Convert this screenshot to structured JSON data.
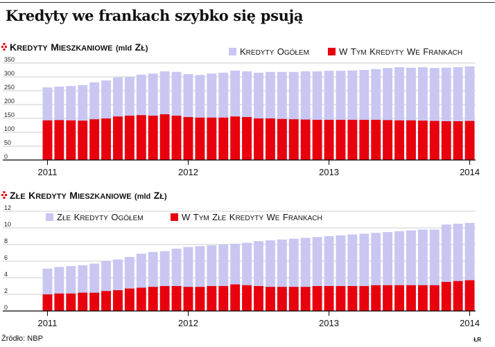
{
  "title": "Kredyty we frankach szybko się psują",
  "source": "Źródło: NBP",
  "credit": "ŁR",
  "colors": {
    "total": "#c9c6f2",
    "chf": "#e8000d",
    "marker": "#e8000d",
    "axis": "#000000",
    "grid": "#bdbdbd"
  },
  "chart_data": [
    {
      "type": "bar",
      "title": "Kredyty mieszkaniowe (mld zł)",
      "x_labels": [
        "2011",
        "2012",
        "2013",
        "2014"
      ],
      "x_label_positions": [
        0,
        12,
        24,
        36
      ],
      "yticks": [
        0,
        50,
        100,
        150,
        200,
        250,
        300,
        350
      ],
      "ylim": [
        0,
        350
      ],
      "grid": true,
      "legend_placement": "top-right",
      "series": [
        {
          "name": "Kredyty ogółem",
          "color": "#c9c6f2",
          "values": [
            262,
            265,
            267,
            270,
            280,
            287,
            298,
            300,
            308,
            312,
            320,
            318,
            310,
            307,
            312,
            315,
            323,
            320,
            315,
            318,
            318,
            318,
            320,
            320,
            322,
            322,
            323,
            325,
            328,
            332,
            335,
            333,
            335,
            332,
            333,
            335,
            338
          ]
        },
        {
          "name": "W tym kredyty we frankach",
          "color": "#e8000d",
          "values": [
            143,
            144,
            143,
            142,
            147,
            150,
            157,
            160,
            162,
            160,
            165,
            160,
            155,
            153,
            153,
            153,
            157,
            155,
            150,
            150,
            148,
            147,
            146,
            145,
            145,
            145,
            145,
            145,
            145,
            144,
            143,
            143,
            142,
            141,
            140,
            140,
            141
          ]
        }
      ]
    },
    {
      "type": "bar",
      "title": "Złe kredyty mieszkaniowe (mld zł)",
      "x_labels": [
        "2011",
        "2012",
        "2013",
        "2014"
      ],
      "x_label_positions": [
        0,
        12,
        24,
        36
      ],
      "yticks": [
        0,
        2,
        4,
        6,
        8,
        10,
        12
      ],
      "ylim": [
        0,
        12
      ],
      "grid": true,
      "legend_placement": "top-left",
      "series": [
        {
          "name": "Złe kredyty ogółem",
          "color": "#c9c6f2",
          "values": [
            5.1,
            5.3,
            5.4,
            5.5,
            5.7,
            6.0,
            6.2,
            6.5,
            6.9,
            7.1,
            7.2,
            7.5,
            7.7,
            7.8,
            7.9,
            8.0,
            8.1,
            8.2,
            8.4,
            8.5,
            8.6,
            8.7,
            8.8,
            8.9,
            9.0,
            9.1,
            9.2,
            9.3,
            9.4,
            9.5,
            9.6,
            9.7,
            9.8,
            9.8,
            10.4,
            10.5,
            10.6
          ]
        },
        {
          "name": "W tym złe kredyty we frankach",
          "color": "#e8000d",
          "values": [
            2.0,
            2.1,
            2.1,
            2.2,
            2.2,
            2.4,
            2.5,
            2.7,
            2.8,
            2.9,
            3.0,
            3.0,
            2.9,
            2.9,
            3.0,
            3.0,
            3.2,
            3.1,
            3.0,
            2.9,
            2.9,
            2.9,
            2.9,
            3.0,
            3.0,
            3.0,
            3.0,
            3.0,
            3.1,
            3.1,
            3.1,
            3.1,
            3.1,
            3.1,
            3.5,
            3.6,
            3.7
          ]
        }
      ]
    }
  ]
}
